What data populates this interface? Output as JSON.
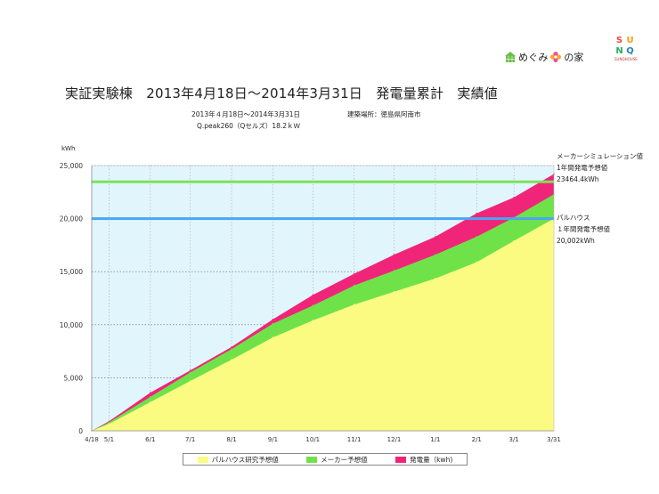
{
  "logo": {
    "megumi_text": "めぐみ",
    "megumi_suffix": "の家",
    "sunq_letters": [
      "S",
      "U",
      "N",
      "Q"
    ],
    "sunq_house": "SUNQHOUSE"
  },
  "title": "実証実験棟　2013年4月18日〜2014年3月31日　発電量累計　実績値",
  "meta": {
    "period": "2013年４月18日〜2014年3月31日",
    "location": "建築場所：徳島県阿南市",
    "system": "Q.peak260（Qセルズ）18.2ｋＷ"
  },
  "annotations": {
    "maker_title": "メーカーシミュレーション値",
    "maker_sub": "1年間発電予想値",
    "maker_value": "23464.4kWh",
    "pal_title": "パルハウス",
    "pal_sub": "１年間発電予想値",
    "pal_value": "20,002kWh"
  },
  "colors": {
    "plot_bg": "#e1f6fc",
    "pal": "#fbfb82",
    "maker": "#6fe24a",
    "actual": "#f0257a",
    "maker_line": "#7ee05a",
    "pal_line": "#4aa6f0"
  },
  "chart_data": {
    "type": "area",
    "ylabel": "kWh",
    "ylim": [
      0,
      25000
    ],
    "yticks": [
      0,
      5000,
      10000,
      15000,
      20000,
      25000
    ],
    "ytick_labels": [
      "0",
      "5,000",
      "10,000",
      "15,000",
      "20,000",
      "25,000"
    ],
    "grid": true,
    "legend_position": "bottom",
    "x_ticks": [
      {
        "label": "4/18",
        "day": 0
      },
      {
        "label": "5/1",
        "day": 13
      },
      {
        "label": "6/1",
        "day": 44
      },
      {
        "label": "7/1",
        "day": 74
      },
      {
        "label": "8/1",
        "day": 105
      },
      {
        "label": "9/1",
        "day": 136
      },
      {
        "label": "10/1",
        "day": 166
      },
      {
        "label": "11/1",
        "day": 197
      },
      {
        "label": "12/1",
        "day": 227
      },
      {
        "label": "1/1",
        "day": 258
      },
      {
        "label": "2/1",
        "day": 289
      },
      {
        "label": "3/1",
        "day": 317
      },
      {
        "label": "3/31",
        "day": 347
      }
    ],
    "xlim": [
      0,
      347
    ],
    "series": [
      {
        "name": "パルハウス研究予想値",
        "x": [
          0,
          13,
          44,
          74,
          105,
          136,
          166,
          197,
          227,
          258,
          289,
          317,
          347
        ],
        "values": [
          0,
          650,
          2700,
          4700,
          6700,
          8800,
          10400,
          11900,
          13100,
          14350,
          15900,
          17900,
          20000
        ]
      },
      {
        "name": "メーカー予想値",
        "x": [
          0,
          13,
          44,
          74,
          105,
          136,
          166,
          197,
          227,
          258,
          289,
          317,
          347
        ],
        "values": [
          0,
          800,
          3200,
          5500,
          7700,
          10100,
          11800,
          13700,
          15100,
          16600,
          18300,
          20100,
          22300
        ]
      },
      {
        "name": "発電量（kwh)",
        "x": [
          0,
          13,
          44,
          74,
          105,
          136,
          166,
          197,
          227,
          258,
          289,
          317,
          347
        ],
        "values": [
          0,
          900,
          3600,
          5700,
          7900,
          10500,
          12800,
          14800,
          16600,
          18300,
          20500,
          22000,
          24200
        ]
      }
    ],
    "reference_lines": [
      {
        "value": 23464.4
      },
      {
        "value": 20002
      }
    ]
  }
}
